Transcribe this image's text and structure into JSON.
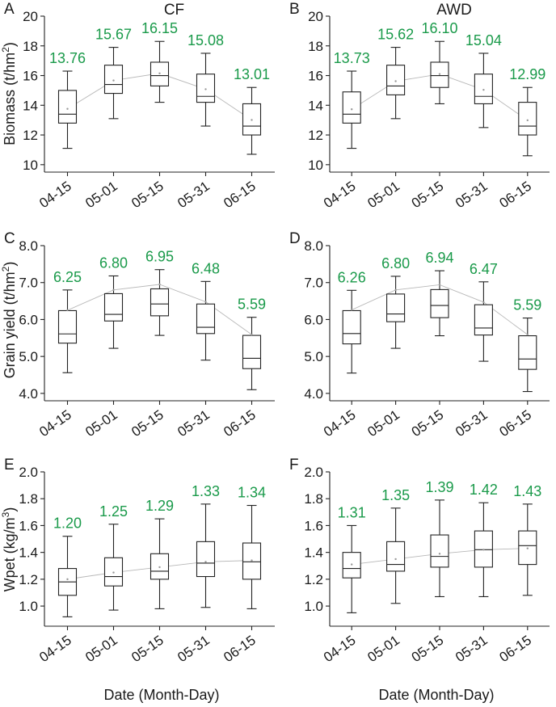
{
  "colors": {
    "label_green": "#1a9a4a",
    "box_stroke": "#222222",
    "trend_line": "#b8b8b8",
    "mean_dot": "#999999"
  },
  "x_axis_label": "Date (Month-Day)",
  "chart_data": [
    {
      "type": "box",
      "panel": "A",
      "title": "CF",
      "ylabel": "Biomass (t/hm",
      "ylabel_sup": "2",
      "ylabel_end": ")",
      "ylim": [
        9.5,
        20
      ],
      "yticks": [
        "10",
        "12",
        "14",
        "16",
        "18",
        "20"
      ],
      "ytick_values": [
        10,
        12,
        14,
        16,
        18,
        20
      ],
      "categories": [
        "04-15",
        "05-01",
        "05-15",
        "05-31",
        "06-15"
      ],
      "boxes": [
        {
          "min": 11.1,
          "q1": 12.8,
          "median": 13.4,
          "q3": 15.0,
          "max": 16.3,
          "mean": 13.76
        },
        {
          "min": 13.1,
          "q1": 14.8,
          "median": 15.4,
          "q3": 16.7,
          "max": 17.9,
          "mean": 15.67
        },
        {
          "min": 14.2,
          "q1": 15.3,
          "median": 16.0,
          "q3": 16.9,
          "max": 18.3,
          "mean": 16.15
        },
        {
          "min": 12.6,
          "q1": 14.2,
          "median": 14.6,
          "q3": 16.1,
          "max": 17.5,
          "mean": 15.08
        },
        {
          "min": 10.7,
          "q1": 12.0,
          "median": 12.6,
          "q3": 14.1,
          "max": 15.2,
          "mean": 13.01
        }
      ],
      "mean_labels": [
        "13.76",
        "15.67",
        "16.15",
        "15.08",
        "13.01"
      ]
    },
    {
      "type": "box",
      "panel": "B",
      "title": "AWD",
      "ylabel": "",
      "ylabel_sup": "",
      "ylabel_end": "",
      "ylim": [
        9.5,
        20
      ],
      "yticks": [
        "10",
        "12",
        "14",
        "16",
        "18",
        "20"
      ],
      "ytick_values": [
        10,
        12,
        14,
        16,
        18,
        20
      ],
      "categories": [
        "04-15",
        "05-01",
        "05-15",
        "05-31",
        "06-15"
      ],
      "boxes": [
        {
          "min": 11.1,
          "q1": 12.8,
          "median": 13.4,
          "q3": 14.9,
          "max": 16.3,
          "mean": 13.73
        },
        {
          "min": 13.1,
          "q1": 14.7,
          "median": 15.3,
          "q3": 16.7,
          "max": 17.9,
          "mean": 15.62
        },
        {
          "min": 14.1,
          "q1": 15.2,
          "median": 16.0,
          "q3": 16.9,
          "max": 18.3,
          "mean": 16.1
        },
        {
          "min": 12.5,
          "q1": 14.1,
          "median": 14.6,
          "q3": 16.1,
          "max": 17.5,
          "mean": 15.04
        },
        {
          "min": 10.6,
          "q1": 12.0,
          "median": 12.6,
          "q3": 14.2,
          "max": 15.2,
          "mean": 12.99
        }
      ],
      "mean_labels": [
        "13.73",
        "15.62",
        "16.10",
        "15.04",
        "12.99"
      ]
    },
    {
      "type": "box",
      "panel": "C",
      "title": "",
      "ylabel": "Grain yield (t/hm",
      "ylabel_sup": "2",
      "ylabel_end": ")",
      "ylim": [
        3.8,
        8.0
      ],
      "yticks": [
        "4.0",
        "5.0",
        "6.0",
        "7.0",
        "8.0"
      ],
      "ytick_values": [
        4.0,
        5.0,
        6.0,
        7.0,
        8.0
      ],
      "categories": [
        "04-15",
        "05-01",
        "05-15",
        "05-31",
        "06-15"
      ],
      "boxes": [
        {
          "min": 4.56,
          "q1": 5.36,
          "median": 5.61,
          "q3": 6.24,
          "max": 6.8,
          "mean": 6.25
        },
        {
          "min": 5.22,
          "q1": 5.96,
          "median": 6.14,
          "q3": 6.7,
          "max": 7.18,
          "mean": 6.8
        },
        {
          "min": 5.57,
          "q1": 6.1,
          "median": 6.42,
          "q3": 6.83,
          "max": 7.35,
          "mean": 6.95
        },
        {
          "min": 4.9,
          "q1": 5.62,
          "median": 5.79,
          "q3": 6.42,
          "max": 7.03,
          "mean": 6.48
        },
        {
          "min": 4.1,
          "q1": 4.67,
          "median": 4.95,
          "q3": 5.57,
          "max": 6.06,
          "mean": 5.59
        }
      ],
      "mean_labels": [
        "6.25",
        "6.80",
        "6.95",
        "6.48",
        "5.59"
      ]
    },
    {
      "type": "box",
      "panel": "D",
      "title": "",
      "ylabel": "",
      "ylabel_sup": "",
      "ylabel_end": "",
      "ylim": [
        3.8,
        8.0
      ],
      "yticks": [
        "4.0",
        "5.0",
        "6.0",
        "7.0",
        "8.0"
      ],
      "ytick_values": [
        4.0,
        5.0,
        6.0,
        7.0,
        8.0
      ],
      "categories": [
        "04-15",
        "05-01",
        "05-15",
        "05-31",
        "06-15"
      ],
      "boxes": [
        {
          "min": 4.55,
          "q1": 5.34,
          "median": 5.62,
          "q3": 6.24,
          "max": 6.79,
          "mean": 6.26
        },
        {
          "min": 5.22,
          "q1": 5.94,
          "median": 6.15,
          "q3": 6.69,
          "max": 7.17,
          "mean": 6.8
        },
        {
          "min": 5.56,
          "q1": 6.05,
          "median": 6.38,
          "q3": 6.81,
          "max": 7.32,
          "mean": 6.94
        },
        {
          "min": 4.87,
          "q1": 5.58,
          "median": 5.77,
          "q3": 6.4,
          "max": 7.02,
          "mean": 6.47
        },
        {
          "min": 4.05,
          "q1": 4.65,
          "median": 4.93,
          "q3": 5.56,
          "max": 6.04,
          "mean": 5.59
        }
      ],
      "mean_labels": [
        "6.26",
        "6.80",
        "6.94",
        "6.47",
        "5.59"
      ]
    },
    {
      "type": "box",
      "panel": "E",
      "title": "",
      "ylabel": "Wpet (kg/m",
      "ylabel_sup": "3",
      "ylabel_end": ")",
      "ylim": [
        0.85,
        2.0
      ],
      "yticks": [
        "1.0",
        "1.2",
        "1.4",
        "1.6",
        "1.8",
        "2.0"
      ],
      "ytick_values": [
        1.0,
        1.2,
        1.4,
        1.6,
        1.8,
        2.0
      ],
      "categories": [
        "04-15",
        "05-01",
        "05-15",
        "05-31",
        "06-15"
      ],
      "boxes": [
        {
          "min": 0.92,
          "q1": 1.08,
          "median": 1.18,
          "q3": 1.28,
          "max": 1.52,
          "mean": 1.2
        },
        {
          "min": 0.97,
          "q1": 1.15,
          "median": 1.22,
          "q3": 1.36,
          "max": 1.61,
          "mean": 1.25
        },
        {
          "min": 0.98,
          "q1": 1.2,
          "median": 1.26,
          "q3": 1.39,
          "max": 1.65,
          "mean": 1.29
        },
        {
          "min": 0.99,
          "q1": 1.22,
          "median": 1.32,
          "q3": 1.48,
          "max": 1.76,
          "mean": 1.33
        },
        {
          "min": 0.98,
          "q1": 1.2,
          "median": 1.33,
          "q3": 1.47,
          "max": 1.75,
          "mean": 1.34
        }
      ],
      "mean_labels": [
        "1.20",
        "1.25",
        "1.29",
        "1.33",
        "1.34"
      ]
    },
    {
      "type": "box",
      "panel": "F",
      "title": "",
      "ylabel": "",
      "ylabel_sup": "",
      "ylabel_end": "",
      "ylim": [
        0.85,
        2.0
      ],
      "yticks": [
        "1.0",
        "1.2",
        "1.4",
        "1.6",
        "1.8",
        "2.0"
      ],
      "ytick_values": [
        1.0,
        1.2,
        1.4,
        1.6,
        1.8,
        2.0
      ],
      "categories": [
        "04-15",
        "05-01",
        "05-15",
        "05-31",
        "06-15"
      ],
      "boxes": [
        {
          "min": 0.95,
          "q1": 1.21,
          "median": 1.28,
          "q3": 1.4,
          "max": 1.6,
          "mean": 1.31
        },
        {
          "min": 1.02,
          "q1": 1.26,
          "median": 1.31,
          "q3": 1.48,
          "max": 1.73,
          "mean": 1.35
        },
        {
          "min": 1.07,
          "q1": 1.29,
          "median": 1.37,
          "q3": 1.53,
          "max": 1.79,
          "mean": 1.39
        },
        {
          "min": 1.07,
          "q1": 1.29,
          "median": 1.42,
          "q3": 1.56,
          "max": 1.77,
          "mean": 1.42
        },
        {
          "min": 1.08,
          "q1": 1.31,
          "median": 1.45,
          "q3": 1.56,
          "max": 1.76,
          "mean": 1.43
        }
      ],
      "mean_labels": [
        "1.31",
        "1.35",
        "1.39",
        "1.42",
        "1.43"
      ]
    }
  ]
}
